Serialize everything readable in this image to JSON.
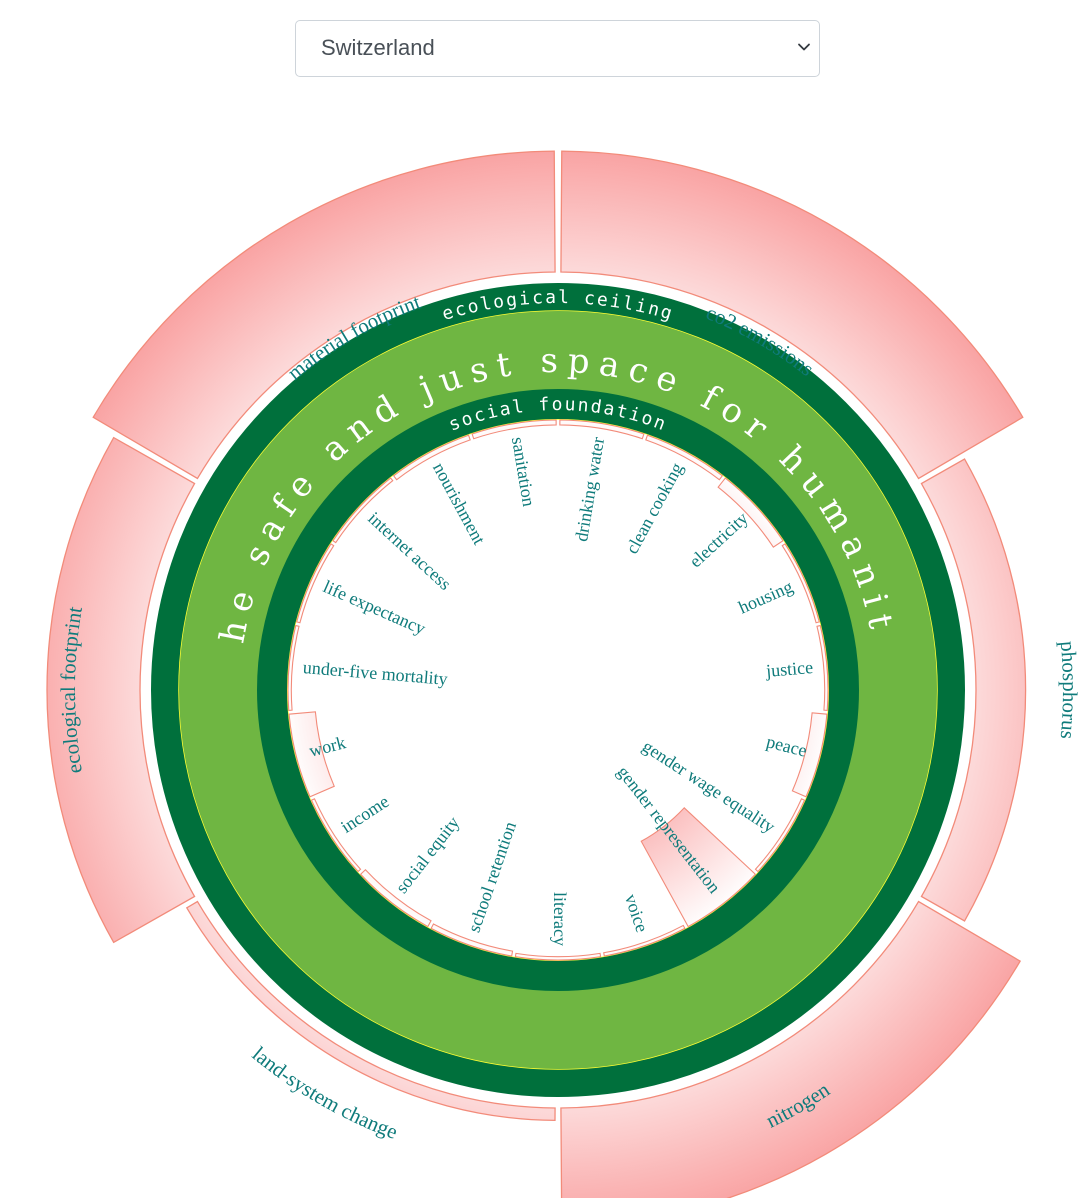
{
  "selector": {
    "selected": "Switzerland",
    "icon": "chevron-down-icon"
  },
  "rings": {
    "ceiling_label": "ecological ceiling",
    "foundation_label": "social foundation",
    "center_label": "the safe and just space for humanity"
  },
  "colors": {
    "dark_green": "#00703c",
    "light_green": "#6fb642",
    "yellow_outline": "#ffff33",
    "overshoot_fill": "#f9a3a3",
    "overshoot_stroke": "#f28b7a",
    "label_teal": "#0f7b7b"
  },
  "ecological_dimensions": [
    {
      "name": "co2 emissions",
      "overshoot": 3.9
    },
    {
      "name": "phosphorus",
      "overshoot": 1.6
    },
    {
      "name": "nitrogen",
      "overshoot": 3.8
    },
    {
      "name": "land-system change",
      "overshoot": 0.4
    },
    {
      "name": "ecological footprint",
      "overshoot": 3.0
    },
    {
      "name": "material footprint",
      "overshoot": 3.9
    }
  ],
  "social_dimensions": [
    {
      "name": "drinking water",
      "shortfall": 0.03
    },
    {
      "name": "clean cooking",
      "shortfall": 0.03
    },
    {
      "name": "electricity",
      "shortfall": 0.07
    },
    {
      "name": "housing",
      "shortfall": 0.0
    },
    {
      "name": "justice",
      "shortfall": 0.0
    },
    {
      "name": "peace",
      "shortfall": 0.09
    },
    {
      "name": "gender wage equality",
      "shortfall": 0.0
    },
    {
      "name": "gender representation",
      "shortfall": 0.59
    },
    {
      "name": "voice",
      "shortfall": 0.0
    },
    {
      "name": "literacy",
      "shortfall": 0.0
    },
    {
      "name": "school retention",
      "shortfall": 0.03
    },
    {
      "name": "social equity",
      "shortfall": 0.04
    },
    {
      "name": "income",
      "shortfall": 0.0
    },
    {
      "name": "work",
      "shortfall": 0.16
    },
    {
      "name": "under-five mortality",
      "shortfall": 0.02
    },
    {
      "name": "life expectancy",
      "shortfall": 0.02
    },
    {
      "name": "internet access",
      "shortfall": 0.02
    },
    {
      "name": "nourishment",
      "shortfall": 0.03
    },
    {
      "name": "sanitation",
      "shortfall": 0.03
    }
  ]
}
